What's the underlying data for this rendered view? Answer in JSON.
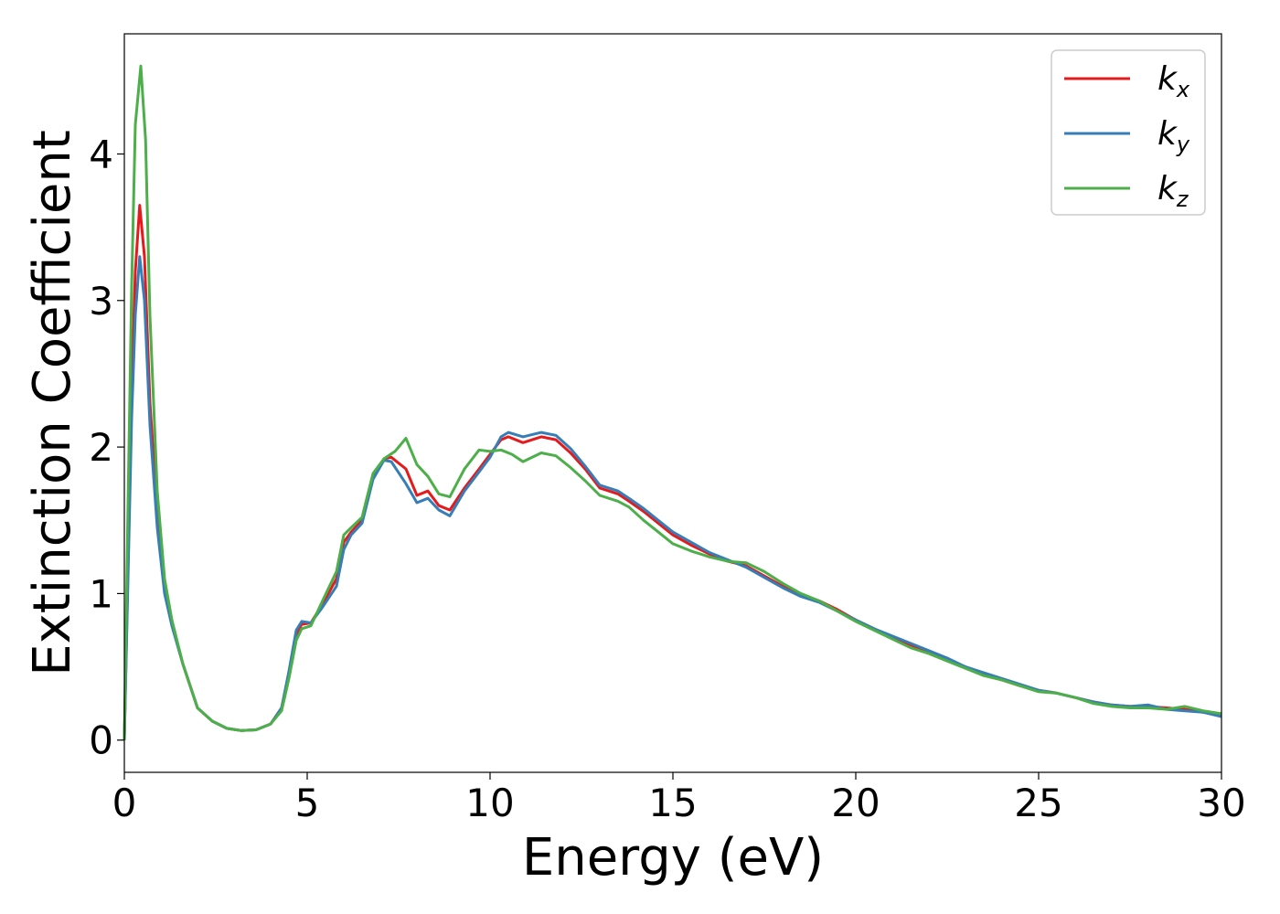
{
  "chart_data": {
    "type": "line",
    "title": "",
    "xlabel": "Energy (eV)",
    "ylabel": "Extinction Coefficient",
    "xlim": [
      0,
      30
    ],
    "ylim": [
      -0.22,
      4.82
    ],
    "xticks": [
      0,
      5,
      10,
      15,
      20,
      25,
      30
    ],
    "yticks": [
      0,
      1,
      2,
      3,
      4
    ],
    "grid": false,
    "legend_position": "top-right",
    "series": [
      {
        "name": "k",
        "subscript": "x",
        "color": "#e41a1c",
        "points": [
          [
            0,
            0
          ],
          [
            0.1,
            1.2
          ],
          [
            0.2,
            2.4
          ],
          [
            0.3,
            3.2
          ],
          [
            0.42,
            3.65
          ],
          [
            0.55,
            3.3
          ],
          [
            0.7,
            2.3
          ],
          [
            0.9,
            1.55
          ],
          [
            1.1,
            1.05
          ],
          [
            1.3,
            0.8
          ],
          [
            1.6,
            0.52
          ],
          [
            2.0,
            0.22
          ],
          [
            2.4,
            0.13
          ],
          [
            2.8,
            0.08
          ],
          [
            3.2,
            0.065
          ],
          [
            3.6,
            0.07
          ],
          [
            4.0,
            0.11
          ],
          [
            4.3,
            0.22
          ],
          [
            4.5,
            0.45
          ],
          [
            4.7,
            0.72
          ],
          [
            4.85,
            0.79
          ],
          [
            5.1,
            0.8
          ],
          [
            5.4,
            0.92
          ],
          [
            5.8,
            1.1
          ],
          [
            6.0,
            1.35
          ],
          [
            6.2,
            1.42
          ],
          [
            6.5,
            1.5
          ],
          [
            6.8,
            1.8
          ],
          [
            7.1,
            1.92
          ],
          [
            7.3,
            1.93
          ],
          [
            7.7,
            1.85
          ],
          [
            8.0,
            1.67
          ],
          [
            8.3,
            1.7
          ],
          [
            8.6,
            1.6
          ],
          [
            8.9,
            1.57
          ],
          [
            9.3,
            1.72
          ],
          [
            9.7,
            1.85
          ],
          [
            10.0,
            1.95
          ],
          [
            10.3,
            2.05
          ],
          [
            10.5,
            2.07
          ],
          [
            10.9,
            2.03
          ],
          [
            11.4,
            2.07
          ],
          [
            11.8,
            2.05
          ],
          [
            12.2,
            1.96
          ],
          [
            12.6,
            1.85
          ],
          [
            13.0,
            1.72
          ],
          [
            13.5,
            1.68
          ],
          [
            13.8,
            1.63
          ],
          [
            14.2,
            1.56
          ],
          [
            14.6,
            1.48
          ],
          [
            15.0,
            1.4
          ],
          [
            15.5,
            1.33
          ],
          [
            16.0,
            1.27
          ],
          [
            16.5,
            1.22
          ],
          [
            17.0,
            1.19
          ],
          [
            17.5,
            1.12
          ],
          [
            18.0,
            1.05
          ],
          [
            18.5,
            0.99
          ],
          [
            19.0,
            0.95
          ],
          [
            19.5,
            0.89
          ],
          [
            20.0,
            0.82
          ],
          [
            20.5,
            0.76
          ],
          [
            21.0,
            0.7
          ],
          [
            21.5,
            0.65
          ],
          [
            22.0,
            0.6
          ],
          [
            22.5,
            0.55
          ],
          [
            23.0,
            0.5
          ],
          [
            23.5,
            0.45
          ],
          [
            24.0,
            0.41
          ],
          [
            24.5,
            0.37
          ],
          [
            25.0,
            0.34
          ],
          [
            25.5,
            0.32
          ],
          [
            26.0,
            0.29
          ],
          [
            26.5,
            0.26
          ],
          [
            27.0,
            0.24
          ],
          [
            27.5,
            0.23
          ],
          [
            28.0,
            0.23
          ],
          [
            28.5,
            0.22
          ],
          [
            29.0,
            0.21
          ],
          [
            29.5,
            0.19
          ],
          [
            30.0,
            0.17
          ]
        ]
      },
      {
        "name": "k",
        "subscript": "y",
        "color": "#377eb8",
        "points": [
          [
            0,
            0
          ],
          [
            0.1,
            1.1
          ],
          [
            0.2,
            2.2
          ],
          [
            0.3,
            2.9
          ],
          [
            0.42,
            3.3
          ],
          [
            0.55,
            3.0
          ],
          [
            0.7,
            2.15
          ],
          [
            0.9,
            1.45
          ],
          [
            1.1,
            1.0
          ],
          [
            1.3,
            0.78
          ],
          [
            1.6,
            0.52
          ],
          [
            2.0,
            0.22
          ],
          [
            2.4,
            0.13
          ],
          [
            2.8,
            0.08
          ],
          [
            3.2,
            0.065
          ],
          [
            3.6,
            0.07
          ],
          [
            4.0,
            0.11
          ],
          [
            4.3,
            0.22
          ],
          [
            4.5,
            0.47
          ],
          [
            4.7,
            0.75
          ],
          [
            4.85,
            0.81
          ],
          [
            5.1,
            0.8
          ],
          [
            5.4,
            0.9
          ],
          [
            5.8,
            1.05
          ],
          [
            6.0,
            1.3
          ],
          [
            6.2,
            1.4
          ],
          [
            6.5,
            1.48
          ],
          [
            6.8,
            1.78
          ],
          [
            7.1,
            1.91
          ],
          [
            7.3,
            1.9
          ],
          [
            7.7,
            1.75
          ],
          [
            8.0,
            1.62
          ],
          [
            8.3,
            1.65
          ],
          [
            8.6,
            1.57
          ],
          [
            8.9,
            1.53
          ],
          [
            9.3,
            1.7
          ],
          [
            9.7,
            1.83
          ],
          [
            10.0,
            1.93
          ],
          [
            10.3,
            2.07
          ],
          [
            10.5,
            2.1
          ],
          [
            10.9,
            2.07
          ],
          [
            11.4,
            2.1
          ],
          [
            11.8,
            2.08
          ],
          [
            12.2,
            1.99
          ],
          [
            12.6,
            1.87
          ],
          [
            13.0,
            1.74
          ],
          [
            13.5,
            1.7
          ],
          [
            13.8,
            1.65
          ],
          [
            14.2,
            1.58
          ],
          [
            14.6,
            1.5
          ],
          [
            15.0,
            1.42
          ],
          [
            15.5,
            1.35
          ],
          [
            16.0,
            1.28
          ],
          [
            16.5,
            1.23
          ],
          [
            17.0,
            1.18
          ],
          [
            17.5,
            1.11
          ],
          [
            18.0,
            1.04
          ],
          [
            18.5,
            0.98
          ],
          [
            19.0,
            0.94
          ],
          [
            19.5,
            0.88
          ],
          [
            20.0,
            0.82
          ],
          [
            20.5,
            0.76
          ],
          [
            21.0,
            0.71
          ],
          [
            21.5,
            0.66
          ],
          [
            22.0,
            0.61
          ],
          [
            22.5,
            0.56
          ],
          [
            23.0,
            0.5
          ],
          [
            23.5,
            0.46
          ],
          [
            24.0,
            0.42
          ],
          [
            24.5,
            0.38
          ],
          [
            25.0,
            0.34
          ],
          [
            25.5,
            0.32
          ],
          [
            26.0,
            0.29
          ],
          [
            26.5,
            0.26
          ],
          [
            27.0,
            0.24
          ],
          [
            27.5,
            0.23
          ],
          [
            28.0,
            0.24
          ],
          [
            28.5,
            0.21
          ],
          [
            29.0,
            0.2
          ],
          [
            29.5,
            0.19
          ],
          [
            30.0,
            0.16
          ]
        ]
      },
      {
        "name": "k",
        "subscript": "z",
        "color": "#4daf4a",
        "points": [
          [
            0,
            0
          ],
          [
            0.1,
            1.6
          ],
          [
            0.2,
            3.1
          ],
          [
            0.3,
            4.2
          ],
          [
            0.45,
            4.6
          ],
          [
            0.58,
            4.1
          ],
          [
            0.7,
            2.9
          ],
          [
            0.9,
            1.7
          ],
          [
            1.1,
            1.1
          ],
          [
            1.3,
            0.82
          ],
          [
            1.6,
            0.52
          ],
          [
            2.0,
            0.22
          ],
          [
            2.4,
            0.13
          ],
          [
            2.8,
            0.08
          ],
          [
            3.2,
            0.065
          ],
          [
            3.6,
            0.07
          ],
          [
            4.0,
            0.11
          ],
          [
            4.3,
            0.2
          ],
          [
            4.5,
            0.42
          ],
          [
            4.7,
            0.68
          ],
          [
            4.85,
            0.76
          ],
          [
            5.1,
            0.78
          ],
          [
            5.4,
            0.94
          ],
          [
            5.8,
            1.15
          ],
          [
            6.0,
            1.4
          ],
          [
            6.2,
            1.45
          ],
          [
            6.5,
            1.52
          ],
          [
            6.8,
            1.82
          ],
          [
            7.1,
            1.92
          ],
          [
            7.4,
            1.97
          ],
          [
            7.7,
            2.06
          ],
          [
            8.0,
            1.88
          ],
          [
            8.3,
            1.8
          ],
          [
            8.6,
            1.68
          ],
          [
            8.9,
            1.66
          ],
          [
            9.3,
            1.85
          ],
          [
            9.7,
            1.98
          ],
          [
            10.0,
            1.97
          ],
          [
            10.3,
            1.98
          ],
          [
            10.6,
            1.95
          ],
          [
            10.9,
            1.9
          ],
          [
            11.4,
            1.96
          ],
          [
            11.8,
            1.94
          ],
          [
            12.2,
            1.86
          ],
          [
            12.6,
            1.77
          ],
          [
            13.0,
            1.67
          ],
          [
            13.5,
            1.63
          ],
          [
            13.8,
            1.59
          ],
          [
            14.2,
            1.5
          ],
          [
            14.6,
            1.42
          ],
          [
            15.0,
            1.34
          ],
          [
            15.5,
            1.29
          ],
          [
            16.0,
            1.25
          ],
          [
            16.5,
            1.22
          ],
          [
            17.0,
            1.21
          ],
          [
            17.5,
            1.15
          ],
          [
            18.0,
            1.07
          ],
          [
            18.5,
            1.0
          ],
          [
            19.0,
            0.95
          ],
          [
            19.5,
            0.88
          ],
          [
            20.0,
            0.81
          ],
          [
            20.5,
            0.75
          ],
          [
            21.0,
            0.69
          ],
          [
            21.5,
            0.63
          ],
          [
            22.0,
            0.59
          ],
          [
            22.5,
            0.54
          ],
          [
            23.0,
            0.49
          ],
          [
            23.5,
            0.44
          ],
          [
            24.0,
            0.41
          ],
          [
            24.5,
            0.37
          ],
          [
            25.0,
            0.33
          ],
          [
            25.5,
            0.32
          ],
          [
            26.0,
            0.29
          ],
          [
            26.5,
            0.25
          ],
          [
            27.0,
            0.23
          ],
          [
            27.5,
            0.22
          ],
          [
            28.0,
            0.22
          ],
          [
            28.5,
            0.21
          ],
          [
            29.0,
            0.23
          ],
          [
            29.5,
            0.2
          ],
          [
            30.0,
            0.18
          ]
        ]
      }
    ]
  }
}
